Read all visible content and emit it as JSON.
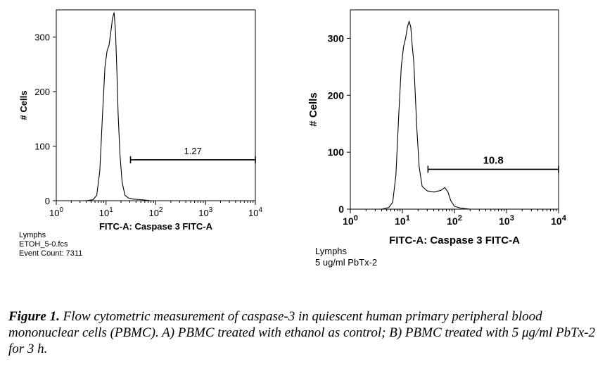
{
  "chart_data": [
    {
      "type": "line",
      "panel": "A",
      "xlabel": "FITC-A: Caspase 3 FITC-A",
      "ylabel": "# Cells",
      "xscale": "log",
      "xlim": [
        1,
        10000
      ],
      "ylim": [
        0,
        350
      ],
      "yticks": [
        0,
        100,
        200,
        300
      ],
      "xticks": [
        1,
        10,
        100,
        1000,
        10000
      ],
      "xtick_labels": [
        {
          "base": "10",
          "exp": "0"
        },
        {
          "base": "10",
          "exp": "1"
        },
        {
          "base": "10",
          "exp": "2"
        },
        {
          "base": "10",
          "exp": "3"
        },
        {
          "base": "10",
          "exp": "4"
        }
      ],
      "series": [
        {
          "x": [
            1,
            4,
            5.5,
            6.5,
            7.5,
            8.5,
            9.5,
            10.5,
            11.5,
            12.5,
            13.5,
            14.5,
            15.5,
            16.5,
            17.5,
            19,
            21,
            24,
            28,
            35,
            50,
            80,
            10000
          ],
          "y": [
            0,
            0,
            2,
            10,
            55,
            160,
            245,
            275,
            285,
            310,
            335,
            345,
            310,
            240,
            160,
            85,
            35,
            10,
            5,
            3,
            2,
            0,
            0
          ]
        }
      ],
      "gate": {
        "x_start": 31,
        "x_end": 10000,
        "y": 75,
        "label": "1.27"
      },
      "info": [
        "Lymphs",
        "ETOH_5-0.fcs",
        "Event Count: 7311"
      ]
    },
    {
      "type": "line",
      "panel": "B",
      "xlabel": "FITC-A: Caspase 3 FITC-A",
      "ylabel": "# Cells",
      "xscale": "log",
      "xlim": [
        1,
        10000
      ],
      "ylim": [
        0,
        350
      ],
      "yticks": [
        0,
        100,
        200,
        300
      ],
      "xticks": [
        1,
        10,
        100,
        1000,
        10000
      ],
      "xtick_labels": [
        {
          "base": "10",
          "exp": "0"
        },
        {
          "base": "10",
          "exp": "1"
        },
        {
          "base": "10",
          "exp": "2"
        },
        {
          "base": "10",
          "exp": "3"
        },
        {
          "base": "10",
          "exp": "4"
        }
      ],
      "series": [
        {
          "x": [
            1,
            4,
            5.5,
            6.5,
            7.5,
            8.5,
            9.5,
            10.5,
            11.5,
            12.5,
            13.5,
            14.5,
            15.5,
            16.5,
            17.5,
            19,
            21,
            24,
            30,
            40,
            55,
            65,
            75,
            85,
            100,
            130,
            200,
            10000
          ],
          "y": [
            0,
            0,
            3,
            12,
            60,
            165,
            250,
            285,
            300,
            320,
            330,
            320,
            285,
            260,
            210,
            140,
            75,
            40,
            32,
            30,
            33,
            38,
            30,
            15,
            5,
            2,
            0,
            0
          ]
        }
      ],
      "gate": {
        "x_start": 31,
        "x_end": 10000,
        "y": 70,
        "label": "10.8"
      },
      "info": [
        "Lymphs",
        "5 ug/ml PbTx-2"
      ]
    }
  ],
  "caption": {
    "label": "Figure 1.",
    "text": "Flow cytometric measurement of caspase-3 in quiescent human primary peripheral blood mononuclear cells (PBMC). A) PBMC treated with ethanol as control; B) PBMC treated with 5 μg/ml PbTx-2 for 3 h."
  }
}
